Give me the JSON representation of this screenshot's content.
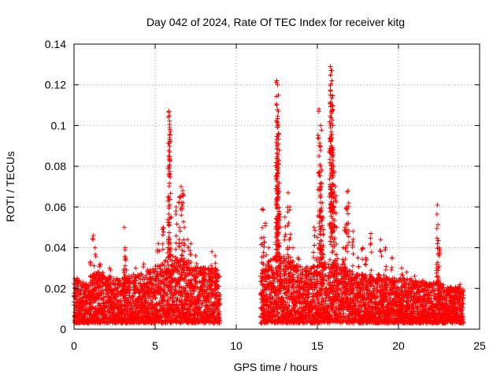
{
  "chart_data": {
    "type": "scatter",
    "title": "Day 042 of 2024, Rate Of TEC Index for receiver kitg",
    "xlabel": "GPS time / hours",
    "ylabel": "ROTI / TECUs",
    "xlim": [
      0,
      25
    ],
    "ylim": [
      0,
      0.14
    ],
    "xticks": [
      0,
      5,
      10,
      15,
      20,
      25
    ],
    "xtick_labels": [
      "0",
      "5",
      "10",
      "15",
      "20",
      "25"
    ],
    "yticks": [
      0,
      0.02,
      0.04,
      0.06,
      0.08,
      0.1,
      0.12,
      0.14
    ],
    "ytick_labels": [
      "0",
      "0.02",
      "0.04",
      "0.06",
      "0.08",
      "0.1",
      "0.12",
      "0.14"
    ],
    "grid": true,
    "marker": "+",
    "color": "#ff0000",
    "data_gap_hours": [
      9.0,
      11.5
    ],
    "series": [
      {
        "name": "ROTI",
        "envelope_hours": [
          0,
          0.5,
          1,
          1.5,
          2,
          2.5,
          3,
          3.5,
          4,
          4.5,
          5,
          5.5,
          6,
          6.5,
          7,
          7.5,
          8,
          8.5,
          9,
          11.5,
          12,
          12.5,
          13,
          13.5,
          14,
          14.5,
          15,
          15.5,
          16,
          16.5,
          17,
          17.5,
          18,
          18.5,
          19,
          19.5,
          20,
          20.5,
          21,
          21.5,
          22,
          22.5,
          23,
          23.5,
          24
        ],
        "envelope_values": [
          0.022,
          0.02,
          0.024,
          0.026,
          0.024,
          0.022,
          0.022,
          0.024,
          0.024,
          0.026,
          0.028,
          0.03,
          0.034,
          0.034,
          0.03,
          0.028,
          0.028,
          0.028,
          0.026,
          0.026,
          0.03,
          0.034,
          0.034,
          0.03,
          0.028,
          0.028,
          0.03,
          0.03,
          0.032,
          0.028,
          0.026,
          0.024,
          0.024,
          0.024,
          0.024,
          0.022,
          0.022,
          0.022,
          0.022,
          0.02,
          0.02,
          0.02,
          0.018,
          0.018,
          0.018
        ],
        "spikes": [
          {
            "x": 0.2,
            "y": 0.025
          },
          {
            "x": 1.0,
            "y": 0.033
          },
          {
            "x": 1.2,
            "y": 0.046
          },
          {
            "x": 1.3,
            "y": 0.04
          },
          {
            "x": 1.6,
            "y": 0.032
          },
          {
            "x": 2.2,
            "y": 0.03
          },
          {
            "x": 3.1,
            "y": 0.05
          },
          {
            "x": 3.15,
            "y": 0.04
          },
          {
            "x": 3.2,
            "y": 0.034
          },
          {
            "x": 3.8,
            "y": 0.03
          },
          {
            "x": 4.3,
            "y": 0.032
          },
          {
            "x": 4.6,
            "y": 0.028
          },
          {
            "x": 5.2,
            "y": 0.042
          },
          {
            "x": 5.5,
            "y": 0.05
          },
          {
            "x": 5.85,
            "y": 0.107
          },
          {
            "x": 5.9,
            "y": 0.099
          },
          {
            "x": 5.9,
            "y": 0.094
          },
          {
            "x": 5.85,
            "y": 0.08
          },
          {
            "x": 5.8,
            "y": 0.063
          },
          {
            "x": 6.0,
            "y": 0.055
          },
          {
            "x": 6.3,
            "y": 0.06
          },
          {
            "x": 6.5,
            "y": 0.065
          },
          {
            "x": 6.6,
            "y": 0.07
          },
          {
            "x": 6.7,
            "y": 0.068
          },
          {
            "x": 6.8,
            "y": 0.05
          },
          {
            "x": 7.0,
            "y": 0.044
          },
          {
            "x": 7.2,
            "y": 0.042
          },
          {
            "x": 7.5,
            "y": 0.036
          },
          {
            "x": 8.0,
            "y": 0.03
          },
          {
            "x": 8.5,
            "y": 0.038
          },
          {
            "x": 8.7,
            "y": 0.036
          },
          {
            "x": 11.6,
            "y": 0.059
          },
          {
            "x": 11.8,
            "y": 0.052
          },
          {
            "x": 11.7,
            "y": 0.045
          },
          {
            "x": 12.0,
            "y": 0.04
          },
          {
            "x": 12.2,
            "y": 0.03
          },
          {
            "x": 12.5,
            "y": 0.122
          },
          {
            "x": 12.55,
            "y": 0.12
          },
          {
            "x": 12.6,
            "y": 0.115
          },
          {
            "x": 12.5,
            "y": 0.11
          },
          {
            "x": 12.55,
            "y": 0.1
          },
          {
            "x": 12.5,
            "y": 0.09
          },
          {
            "x": 12.6,
            "y": 0.083
          },
          {
            "x": 12.55,
            "y": 0.075
          },
          {
            "x": 12.6,
            "y": 0.065
          },
          {
            "x": 12.7,
            "y": 0.055
          },
          {
            "x": 13.0,
            "y": 0.055
          },
          {
            "x": 13.2,
            "y": 0.067
          },
          {
            "x": 13.3,
            "y": 0.06
          },
          {
            "x": 13.5,
            "y": 0.04
          },
          {
            "x": 13.8,
            "y": 0.035
          },
          {
            "x": 14.3,
            "y": 0.03
          },
          {
            "x": 14.8,
            "y": 0.05
          },
          {
            "x": 15.0,
            "y": 0.045
          },
          {
            "x": 15.1,
            "y": 0.108
          },
          {
            "x": 15.2,
            "y": 0.1
          },
          {
            "x": 15.15,
            "y": 0.09
          },
          {
            "x": 15.2,
            "y": 0.08
          },
          {
            "x": 15.25,
            "y": 0.07
          },
          {
            "x": 15.3,
            "y": 0.062
          },
          {
            "x": 15.35,
            "y": 0.055
          },
          {
            "x": 15.8,
            "y": 0.129
          },
          {
            "x": 15.85,
            "y": 0.127
          },
          {
            "x": 15.9,
            "y": 0.122
          },
          {
            "x": 15.8,
            "y": 0.115
          },
          {
            "x": 15.9,
            "y": 0.11
          },
          {
            "x": 15.95,
            "y": 0.1
          },
          {
            "x": 15.85,
            "y": 0.09
          },
          {
            "x": 16.0,
            "y": 0.08
          },
          {
            "x": 16.1,
            "y": 0.07
          },
          {
            "x": 16.0,
            "y": 0.06
          },
          {
            "x": 16.2,
            "y": 0.05
          },
          {
            "x": 16.6,
            "y": 0.04
          },
          {
            "x": 16.9,
            "y": 0.068
          },
          {
            "x": 16.8,
            "y": 0.06
          },
          {
            "x": 16.7,
            "y": 0.05
          },
          {
            "x": 17.2,
            "y": 0.048
          },
          {
            "x": 17.5,
            "y": 0.035
          },
          {
            "x": 17.8,
            "y": 0.04
          },
          {
            "x": 18.0,
            "y": 0.035
          },
          {
            "x": 18.3,
            "y": 0.047
          },
          {
            "x": 18.9,
            "y": 0.044
          },
          {
            "x": 19.2,
            "y": 0.04
          },
          {
            "x": 19.6,
            "y": 0.035
          },
          {
            "x": 20.2,
            "y": 0.03
          },
          {
            "x": 20.5,
            "y": 0.028
          },
          {
            "x": 21.0,
            "y": 0.026
          },
          {
            "x": 21.5,
            "y": 0.024
          },
          {
            "x": 22.4,
            "y": 0.061
          },
          {
            "x": 22.4,
            "y": 0.042
          },
          {
            "x": 22.5,
            "y": 0.04
          },
          {
            "x": 22.5,
            "y": 0.036
          },
          {
            "x": 22.45,
            "y": 0.03
          },
          {
            "x": 23.2,
            "y": 0.02
          },
          {
            "x": 23.8,
            "y": 0.022
          }
        ]
      }
    ]
  }
}
